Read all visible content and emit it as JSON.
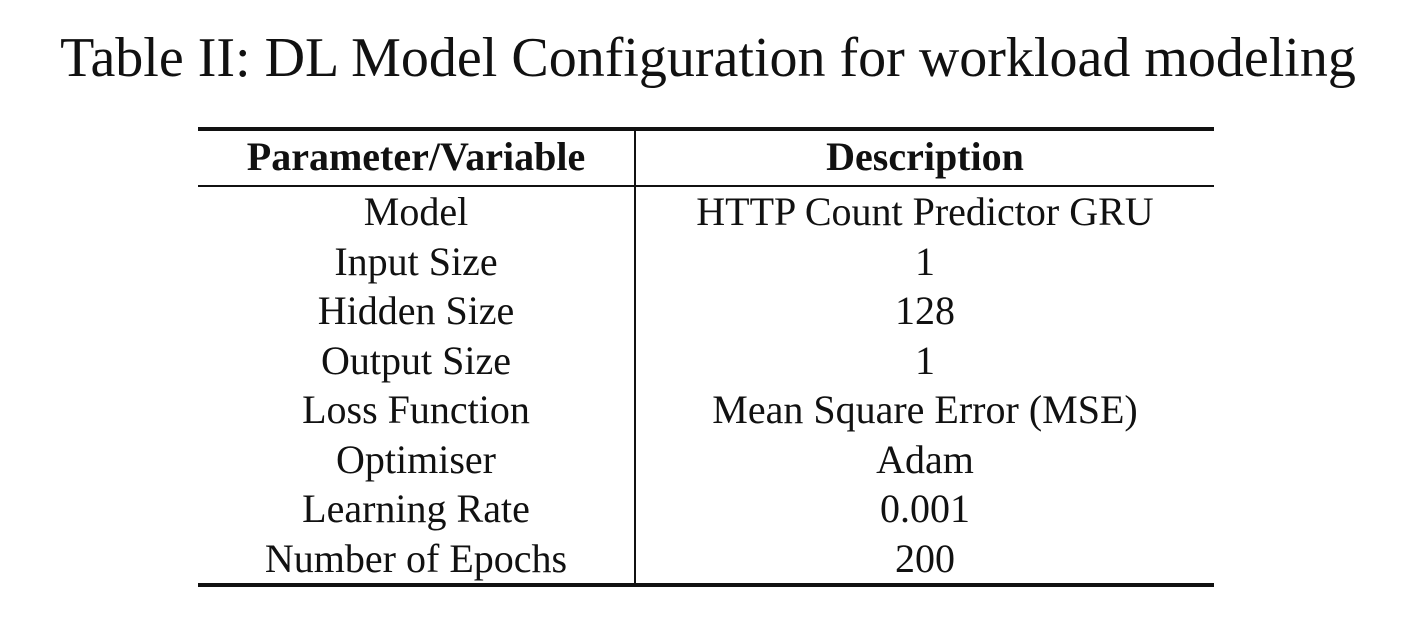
{
  "caption": "Table II: DL Model Configuration for workload modeling",
  "table": {
    "headers": [
      "Parameter/Variable",
      "Description"
    ],
    "rows": [
      [
        "Model",
        "HTTP Count Predictor GRU"
      ],
      [
        "Input Size",
        "1"
      ],
      [
        "Hidden Size",
        "128"
      ],
      [
        "Output Size",
        "1"
      ],
      [
        "Loss Function",
        "Mean Square Error (MSE)"
      ],
      [
        "Optimiser",
        "Adam"
      ],
      [
        "Learning Rate",
        "0.001"
      ],
      [
        "Number of Epochs",
        "200"
      ]
    ]
  }
}
